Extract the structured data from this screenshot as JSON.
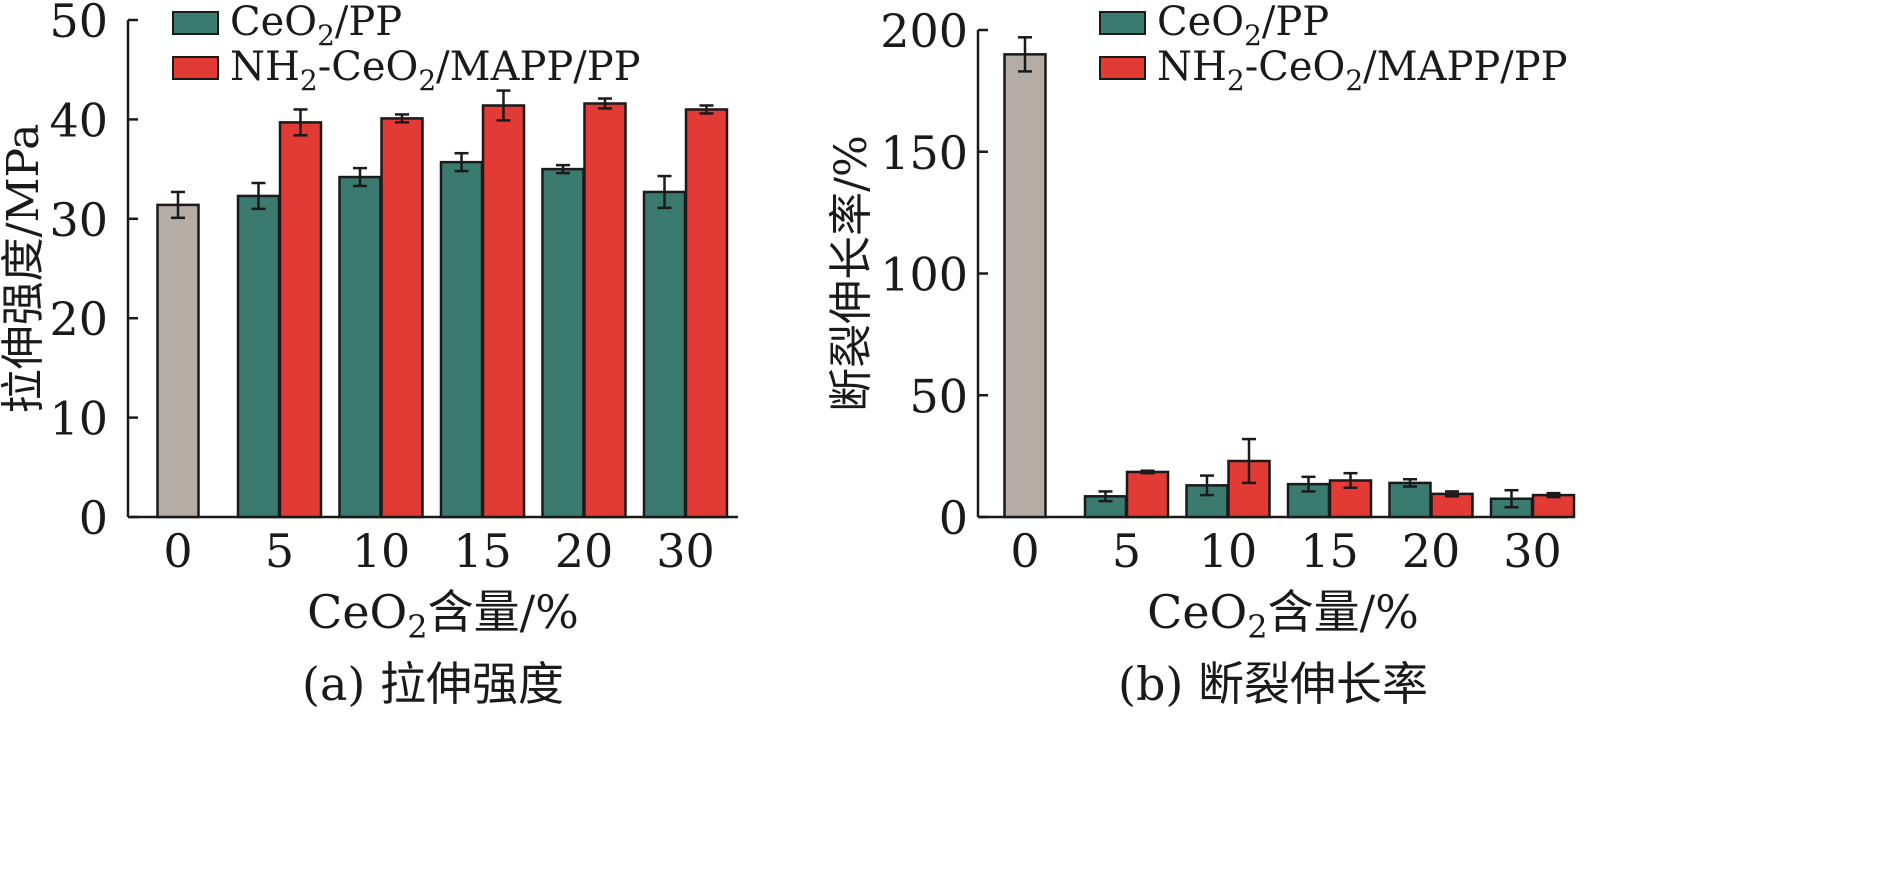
{
  "chart_data": [
    {
      "type": "bar",
      "caption": "(a) 拉伸强度",
      "xlabel": "CeO₂含量/%",
      "ylabel": "拉伸强度/MPa",
      "ylim": [
        0,
        50
      ],
      "yticks": [
        "0",
        "10",
        "20",
        "30",
        "40",
        "50"
      ],
      "categories": [
        "0",
        "5",
        "10",
        "15",
        "20",
        "30"
      ],
      "legend_position": "top-right",
      "baseline": {
        "category": "0",
        "value": 31.4,
        "error": 1.3,
        "color": "#b6aca6"
      },
      "series": [
        {
          "name": "CeO₂/PP",
          "color": "#3b7a6f",
          "values": [
            null,
            32.3,
            34.2,
            35.7,
            35.0,
            32.7
          ],
          "errors": [
            null,
            1.3,
            0.9,
            0.9,
            0.4,
            1.6
          ]
        },
        {
          "name": "NH₂-CeO₂/MAPP/PP",
          "color": "#e23a35",
          "values": [
            null,
            39.7,
            40.1,
            41.4,
            41.6,
            41.0
          ],
          "errors": [
            null,
            1.3,
            0.4,
            1.5,
            0.5,
            0.4
          ]
        }
      ]
    },
    {
      "type": "bar",
      "caption": "(b) 断裂伸长率",
      "xlabel": "CeO₂含量/%",
      "ylabel": "断裂伸长率/%",
      "ylim": [
        0,
        200
      ],
      "yticks": [
        "0",
        "50",
        "100",
        "150",
        "200"
      ],
      "categories": [
        "0",
        "5",
        "10",
        "15",
        "20",
        "30"
      ],
      "legend_position": "top-right",
      "baseline": {
        "category": "0",
        "value": 190,
        "error": 7,
        "color": "#b6aca6"
      },
      "series": [
        {
          "name": "CeO₂/PP",
          "color": "#3b7a6f",
          "values": [
            null,
            8.5,
            13,
            13.5,
            14,
            7.5
          ],
          "errors": [
            null,
            2,
            4,
            3,
            1.5,
            3.5
          ]
        },
        {
          "name": "NH₂-CeO₂/MAPP/PP",
          "color": "#e23a35",
          "values": [
            null,
            18.5,
            23,
            15,
            9.5,
            9
          ],
          "errors": [
            null,
            0.5,
            9,
            3,
            1,
            0.8
          ]
        }
      ]
    }
  ]
}
